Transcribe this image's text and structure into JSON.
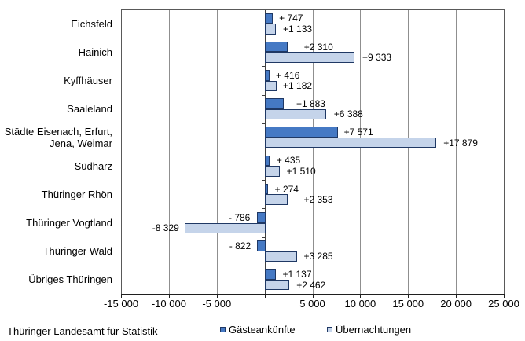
{
  "footer": {
    "source": "Thüringer Landesamt für Statistik"
  },
  "legend": {
    "items": [
      {
        "label": "Gästeankünfte",
        "color": "#4579C4"
      },
      {
        "label": "Übernachtungen",
        "color": "#C5D4EA"
      }
    ]
  },
  "chart_data": {
    "type": "bar",
    "orientation": "horizontal",
    "title": "",
    "xlabel": "",
    "ylabel": "",
    "xlim": [
      -15000,
      25000
    ],
    "x_ticks": [
      -15000,
      -10000,
      -5000,
      0,
      5000,
      10000,
      15000,
      20000,
      25000
    ],
    "x_tick_labels": [
      "-15 000",
      "-10 000",
      "-5 000",
      "",
      "5 000",
      "10 000",
      "15 000",
      "20 000",
      "25 000"
    ],
    "grid": "vertical-major",
    "legend_position": "bottom",
    "categories": [
      "Eichsfeld",
      "Hainich",
      "Kyffhäuser",
      "Saaleland",
      "Städte Eisenach, Erfurt,\nJena, Weimar",
      "Südharz",
      "Thüringer Rhön",
      "Thüringer Vogtland",
      "Thüringer Wald",
      "Übriges Thüringen"
    ],
    "series": [
      {
        "name": "Gästeankünfte",
        "color": "#4579C4",
        "border_color": "#1F3864",
        "values": [
          747,
          2310,
          416,
          1883,
          7571,
          435,
          274,
          -786,
          -822,
          1137
        ],
        "data_labels": [
          "+ 747",
          "+2 310",
          "+ 416",
          "+1 883",
          "+7 571",
          "+ 435",
          "+ 274",
          "- 786",
          "- 822",
          "+1 137"
        ]
      },
      {
        "name": "Übernachtungen",
        "color": "#C5D4EA",
        "border_color": "#1F3864",
        "values": [
          1133,
          9333,
          1182,
          6388,
          17879,
          1510,
          2353,
          -8329,
          3285,
          2462
        ],
        "data_labels": [
          "+1 133",
          "+9 333",
          "+1 182",
          "+6 388",
          "+17 879",
          "+1 510",
          "+2 353",
          "-8 329",
          "+3 285",
          "+2 462"
        ]
      }
    ]
  }
}
